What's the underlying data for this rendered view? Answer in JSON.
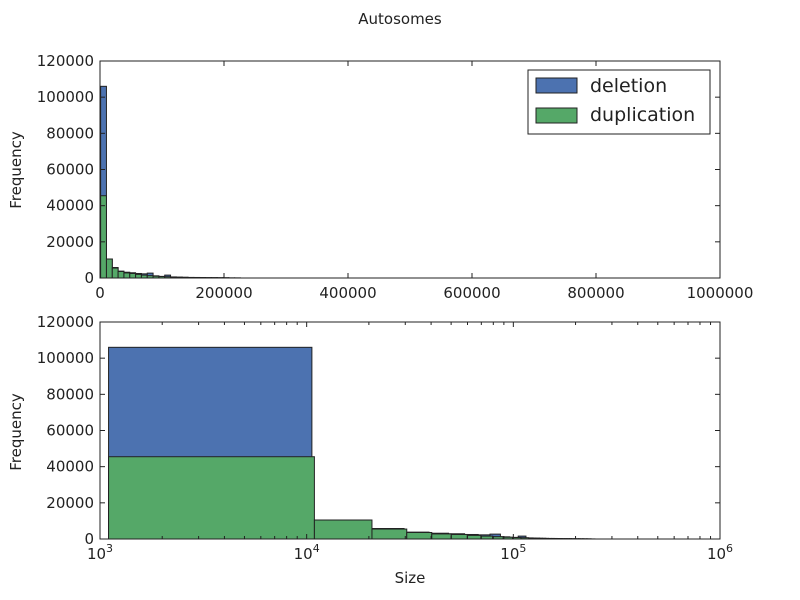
{
  "figure_title": "Autosomes",
  "colors": {
    "deletion": "#4c72b0",
    "duplication": "#55a868",
    "edge": "#222222"
  },
  "chart_data": [
    {
      "type": "bar",
      "scale_x": "linear",
      "title": "",
      "xlabel": "",
      "ylabel": "Frequency",
      "xlim": [
        0,
        1000000
      ],
      "ylim": [
        0,
        120000
      ],
      "xticks": [
        0,
        200000,
        400000,
        600000,
        800000,
        1000000
      ],
      "xtick_labels": [
        "0",
        "200000",
        "400000",
        "600000",
        "800000",
        "1000000"
      ],
      "yticks": [
        0,
        20000,
        40000,
        60000,
        80000,
        100000,
        120000
      ],
      "ytick_labels": [
        "0",
        "20000",
        "40000",
        "60000",
        "80000",
        "100000",
        "120000"
      ],
      "legend": {
        "position": "top-right",
        "entries": [
          "deletion",
          "duplication"
        ]
      },
      "series": [
        {
          "name": "deletion",
          "bins": [
            {
              "x0": 1000,
              "x1": 10400,
              "count": 106000
            },
            {
              "x0": 10400,
              "x1": 19800,
              "count": 10500
            },
            {
              "x0": 19800,
              "x1": 29200,
              "count": 5800
            },
            {
              "x0": 29200,
              "x1": 38600,
              "count": 3800
            },
            {
              "x0": 38600,
              "x1": 48000,
              "count": 3200
            },
            {
              "x0": 48000,
              "x1": 57400,
              "count": 2900
            },
            {
              "x0": 57400,
              "x1": 66800,
              "count": 2500
            },
            {
              "x0": 66800,
              "x1": 76200,
              "count": 2300
            },
            {
              "x0": 76200,
              "x1": 85600,
              "count": 2700
            },
            {
              "x0": 85600,
              "x1": 95000,
              "count": 1200
            },
            {
              "x0": 95000,
              "x1": 104400,
              "count": 900
            },
            {
              "x0": 104400,
              "x1": 113800,
              "count": 1600
            },
            {
              "x0": 113800,
              "x1": 123200,
              "count": 600
            },
            {
              "x0": 123200,
              "x1": 132600,
              "count": 500
            },
            {
              "x0": 132600,
              "x1": 142000,
              "count": 400
            },
            {
              "x0": 142000,
              "x1": 151400,
              "count": 300
            },
            {
              "x0": 151400,
              "x1": 160800,
              "count": 300
            },
            {
              "x0": 160800,
              "x1": 170200,
              "count": 250
            },
            {
              "x0": 170200,
              "x1": 179600,
              "count": 200
            },
            {
              "x0": 179600,
              "x1": 189000,
              "count": 200
            },
            {
              "x0": 189000,
              "x1": 198400,
              "count": 150
            },
            {
              "x0": 198400,
              "x1": 207800,
              "count": 120
            }
          ]
        },
        {
          "name": "duplication",
          "bins": [
            {
              "x0": 1000,
              "x1": 10400,
              "count": 45500
            },
            {
              "x0": 10400,
              "x1": 19800,
              "count": 10500
            },
            {
              "x0": 19800,
              "x1": 29200,
              "count": 5500
            },
            {
              "x0": 29200,
              "x1": 38600,
              "count": 3600
            },
            {
              "x0": 38600,
              "x1": 48000,
              "count": 2800
            },
            {
              "x0": 48000,
              "x1": 57400,
              "count": 2500
            },
            {
              "x0": 57400,
              "x1": 66800,
              "count": 2000
            },
            {
              "x0": 66800,
              "x1": 76200,
              "count": 1600
            },
            {
              "x0": 76200,
              "x1": 85600,
              "count": 1300
            },
            {
              "x0": 85600,
              "x1": 95000,
              "count": 1000
            },
            {
              "x0": 95000,
              "x1": 104400,
              "count": 800
            },
            {
              "x0": 104400,
              "x1": 113800,
              "count": 700
            },
            {
              "x0": 113800,
              "x1": 123200,
              "count": 500
            },
            {
              "x0": 123200,
              "x1": 132600,
              "count": 400
            },
            {
              "x0": 132600,
              "x1": 142000,
              "count": 350
            },
            {
              "x0": 142000,
              "x1": 151400,
              "count": 300
            },
            {
              "x0": 151400,
              "x1": 160800,
              "count": 250
            },
            {
              "x0": 160800,
              "x1": 170200,
              "count": 200
            },
            {
              "x0": 170200,
              "x1": 179600,
              "count": 180
            },
            {
              "x0": 179600,
              "x1": 189000,
              "count": 160
            },
            {
              "x0": 189000,
              "x1": 198400,
              "count": 140
            },
            {
              "x0": 198400,
              "x1": 207800,
              "count": 120
            },
            {
              "x0": 207800,
              "x1": 217200,
              "count": 100
            },
            {
              "x0": 217200,
              "x1": 226600,
              "count": 80
            }
          ]
        }
      ]
    },
    {
      "type": "bar",
      "scale_x": "log",
      "title": "",
      "xlabel": "Size",
      "ylabel": "Frequency",
      "xlim": [
        1000,
        1000000
      ],
      "ylim": [
        0,
        120000
      ],
      "xticks": [
        1000,
        10000,
        100000,
        1000000
      ],
      "xtick_labels": [
        {
          "base": "10",
          "exp": "3"
        },
        {
          "base": "10",
          "exp": "4"
        },
        {
          "base": "10",
          "exp": "5"
        },
        {
          "base": "10",
          "exp": "6"
        }
      ],
      "yticks": [
        0,
        20000,
        40000,
        60000,
        80000,
        100000,
        120000
      ],
      "ytick_labels": [
        "0",
        "20000",
        "40000",
        "60000",
        "80000",
        "100000",
        "120000"
      ],
      "series": [
        {
          "name": "deletion",
          "bins": [
            {
              "x0": 1100,
              "x1": 10600,
              "count": 106000
            },
            {
              "x0": 10600,
              "x1": 20100,
              "count": 10500
            },
            {
              "x0": 20100,
              "x1": 29600,
              "count": 5800
            },
            {
              "x0": 29600,
              "x1": 39100,
              "count": 3800
            },
            {
              "x0": 39100,
              "x1": 48600,
              "count": 3200
            },
            {
              "x0": 48600,
              "x1": 58100,
              "count": 2900
            },
            {
              "x0": 58100,
              "x1": 67600,
              "count": 2500
            },
            {
              "x0": 67600,
              "x1": 77100,
              "count": 2300
            },
            {
              "x0": 77100,
              "x1": 86600,
              "count": 2700
            },
            {
              "x0": 86600,
              "x1": 96100,
              "count": 1200
            },
            {
              "x0": 96100,
              "x1": 105600,
              "count": 900
            },
            {
              "x0": 105600,
              "x1": 115100,
              "count": 1600
            },
            {
              "x0": 115100,
              "x1": 124600,
              "count": 600
            },
            {
              "x0": 124600,
              "x1": 134100,
              "count": 500
            },
            {
              "x0": 134100,
              "x1": 143600,
              "count": 400
            },
            {
              "x0": 143600,
              "x1": 153100,
              "count": 300
            },
            {
              "x0": 153100,
              "x1": 162600,
              "count": 300
            },
            {
              "x0": 162600,
              "x1": 172100,
              "count": 250
            },
            {
              "x0": 172100,
              "x1": 181600,
              "count": 200
            },
            {
              "x0": 181600,
              "x1": 191100,
              "count": 200
            },
            {
              "x0": 191100,
              "x1": 200600,
              "count": 150
            },
            {
              "x0": 200600,
              "x1": 210100,
              "count": 120
            },
            {
              "x0": 210100,
              "x1": 219600,
              "count": 100
            },
            {
              "x0": 219600,
              "x1": 229100,
              "count": 80
            },
            {
              "x0": 229100,
              "x1": 238600,
              "count": 60
            },
            {
              "x0": 238600,
              "x1": 248100,
              "count": 50
            }
          ]
        },
        {
          "name": "duplication",
          "bins": [
            {
              "x0": 1100,
              "x1": 10900,
              "count": 45500
            },
            {
              "x0": 10900,
              "x1": 20700,
              "count": 10500
            },
            {
              "x0": 20700,
              "x1": 30500,
              "count": 5500
            },
            {
              "x0": 30500,
              "x1": 40300,
              "count": 3600
            },
            {
              "x0": 40300,
              "x1": 50100,
              "count": 2800
            },
            {
              "x0": 50100,
              "x1": 59900,
              "count": 2500
            },
            {
              "x0": 59900,
              "x1": 69700,
              "count": 2000
            },
            {
              "x0": 69700,
              "x1": 79500,
              "count": 1600
            },
            {
              "x0": 79500,
              "x1": 89300,
              "count": 1300
            },
            {
              "x0": 89300,
              "x1": 99100,
              "count": 1000
            },
            {
              "x0": 99100,
              "x1": 108900,
              "count": 800
            },
            {
              "x0": 108900,
              "x1": 118700,
              "count": 700
            },
            {
              "x0": 118700,
              "x1": 128500,
              "count": 500
            },
            {
              "x0": 128500,
              "x1": 138300,
              "count": 400
            },
            {
              "x0": 138300,
              "x1": 148100,
              "count": 350
            },
            {
              "x0": 148100,
              "x1": 157900,
              "count": 300
            },
            {
              "x0": 157900,
              "x1": 167700,
              "count": 250
            },
            {
              "x0": 167700,
              "x1": 177500,
              "count": 200
            },
            {
              "x0": 177500,
              "x1": 187300,
              "count": 180
            },
            {
              "x0": 187300,
              "x1": 197100,
              "count": 160
            },
            {
              "x0": 197100,
              "x1": 206900,
              "count": 140
            },
            {
              "x0": 206900,
              "x1": 216700,
              "count": 120
            },
            {
              "x0": 216700,
              "x1": 226500,
              "count": 100
            },
            {
              "x0": 226500,
              "x1": 236300,
              "count": 80
            }
          ]
        }
      ]
    }
  ]
}
